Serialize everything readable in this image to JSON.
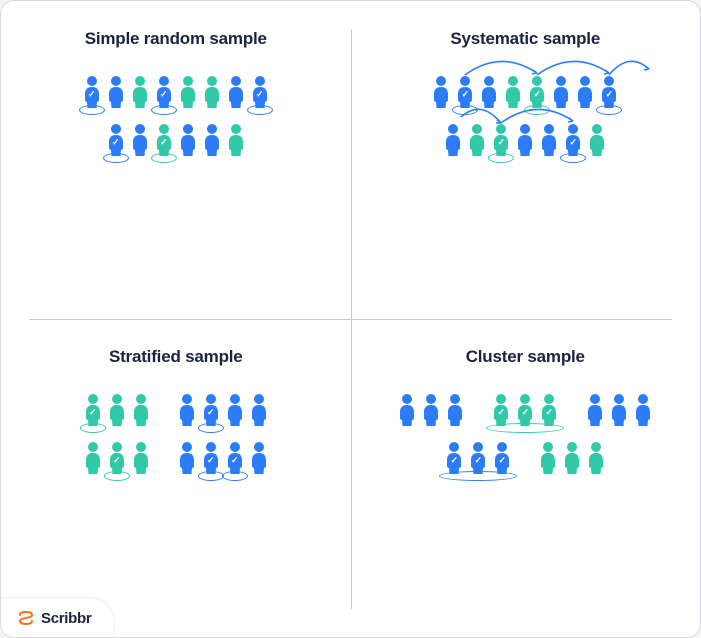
{
  "colors": {
    "blue": "#2b7cf6",
    "teal": "#31c9a7",
    "title": "#1a2340",
    "divider": "#c8c8d4",
    "card_border": "#d8d8e0",
    "card_bg": "#ffffff",
    "logo_orange": "#ff6b1a"
  },
  "brand": {
    "name": "Scribbr"
  },
  "panels": {
    "simple": {
      "title": "Simple random sample",
      "rows": [
        [
          {
            "c": "blue",
            "sel": true,
            "ring": true
          },
          {
            "c": "blue"
          },
          {
            "c": "teal"
          },
          {
            "c": "blue",
            "sel": true,
            "ring": true
          },
          {
            "c": "teal"
          },
          {
            "c": "teal"
          },
          {
            "c": "blue"
          },
          {
            "c": "blue",
            "sel": true,
            "ring": true
          }
        ],
        [
          {
            "c": "blue",
            "sel": true,
            "ring": true
          },
          {
            "c": "blue"
          },
          {
            "c": "teal",
            "sel": true,
            "ring": true
          },
          {
            "c": "blue"
          },
          {
            "c": "blue"
          },
          {
            "c": "teal"
          }
        ]
      ]
    },
    "systematic": {
      "title": "Systematic sample",
      "rows": [
        [
          {
            "c": "blue"
          },
          {
            "c": "blue",
            "sel": true,
            "ring": true
          },
          {
            "c": "blue"
          },
          {
            "c": "teal"
          },
          {
            "c": "teal",
            "sel": true,
            "ring": true
          },
          {
            "c": "blue"
          },
          {
            "c": "blue"
          },
          {
            "c": "blue",
            "sel": true,
            "ring": true
          }
        ],
        [
          {
            "c": "blue"
          },
          {
            "c": "teal"
          },
          {
            "c": "teal",
            "sel": true,
            "ring": true
          },
          {
            "c": "blue"
          },
          {
            "c": "blue"
          },
          {
            "c": "blue",
            "sel": true,
            "ring": true
          },
          {
            "c": "teal"
          }
        ]
      ],
      "arrow_color": "#2b7cf6",
      "arrow_interval": 3
    },
    "stratified": {
      "title": "Stratified sample",
      "group_rows": [
        [
          [
            {
              "c": "teal",
              "sel": true,
              "ring": true
            },
            {
              "c": "teal"
            },
            {
              "c": "teal"
            }
          ],
          [
            {
              "c": "blue"
            },
            {
              "c": "blue",
              "sel": true,
              "ring": true
            },
            {
              "c": "blue"
            },
            {
              "c": "blue"
            }
          ]
        ],
        [
          [
            {
              "c": "teal"
            },
            {
              "c": "teal",
              "sel": true,
              "ring": true
            },
            {
              "c": "teal"
            }
          ],
          [
            {
              "c": "blue"
            },
            {
              "c": "blue",
              "sel": true,
              "ring": true
            },
            {
              "c": "blue",
              "sel": true,
              "ring": true
            },
            {
              "c": "blue"
            }
          ]
        ]
      ]
    },
    "cluster": {
      "title": "Cluster sample",
      "group_rows": [
        [
          {
            "people": [
              {
                "c": "blue"
              },
              {
                "c": "blue"
              },
              {
                "c": "blue"
              }
            ],
            "ring": false
          },
          {
            "people": [
              {
                "c": "teal",
                "sel": true
              },
              {
                "c": "teal",
                "sel": true
              },
              {
                "c": "teal",
                "sel": true
              }
            ],
            "ring": true,
            "ring_color": "teal"
          },
          {
            "people": [
              {
                "c": "blue"
              },
              {
                "c": "blue"
              },
              {
                "c": "blue"
              }
            ],
            "ring": false
          }
        ],
        [
          {
            "people": [
              {
                "c": "blue",
                "sel": true
              },
              {
                "c": "blue",
                "sel": true
              },
              {
                "c": "blue",
                "sel": true
              }
            ],
            "ring": true,
            "ring_color": "blue"
          },
          {
            "people": [
              {
                "c": "teal"
              },
              {
                "c": "teal"
              },
              {
                "c": "teal"
              }
            ],
            "ring": false
          }
        ]
      ]
    }
  }
}
